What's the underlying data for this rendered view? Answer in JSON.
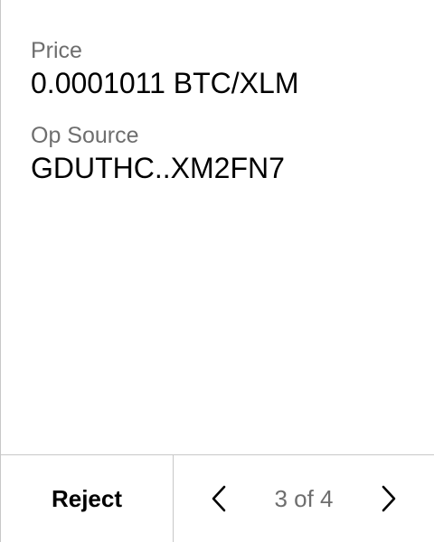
{
  "fields": [
    {
      "label": "Price",
      "value": "0.0001011 BTC/XLM"
    },
    {
      "label": "Op Source",
      "value": "GDUTHC..XM2FN7"
    }
  ],
  "footer": {
    "reject_label": "Reject",
    "pager_text": "3 of 4",
    "prev_icon": "chevron-left-icon",
    "next_icon": "chevron-right-icon"
  }
}
